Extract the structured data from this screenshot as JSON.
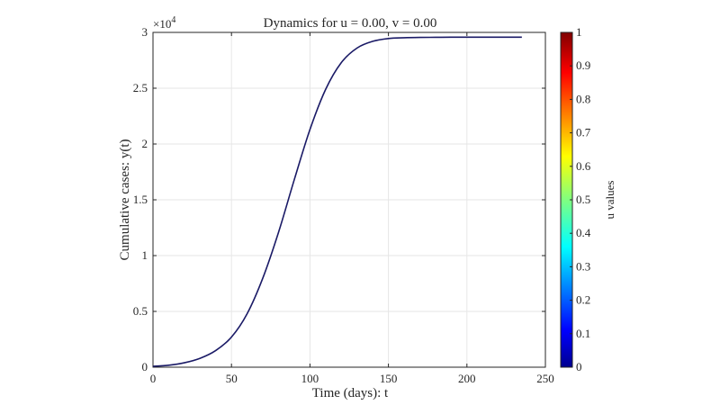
{
  "chart_data": {
    "type": "line",
    "title": "Dynamics for u = 0.00, v = 0.00",
    "xlabel": "Time (days): t",
    "ylabel": "Cumulative cases: y(t)",
    "xlim": [
      0,
      250
    ],
    "ylim": [
      0,
      30000
    ],
    "y_multiplier_label": "×10",
    "y_multiplier_exponent": "4",
    "x_ticks": [
      0,
      50,
      100,
      150,
      200,
      250
    ],
    "y_ticks": [
      0,
      0.5,
      1,
      1.5,
      2,
      2.5,
      3
    ],
    "y_tick_labels": [
      "0",
      "0.5",
      "1",
      "1.5",
      "2",
      "2.5",
      "3"
    ],
    "grid": true,
    "series": [
      {
        "color": "#1a1a66",
        "x": [
          0,
          10,
          20,
          30,
          40,
          50,
          60,
          70,
          80,
          90,
          100,
          110,
          120,
          130,
          140,
          150,
          160,
          170,
          180,
          190,
          200,
          210,
          220,
          235
        ],
        "y": [
          80,
          180,
          400,
          800,
          1500,
          2700,
          4800,
          8000,
          12100,
          16800,
          21300,
          24900,
          27300,
          28600,
          29200,
          29450,
          29520,
          29550,
          29560,
          29570,
          29570,
          29570,
          29570,
          29570
        ]
      }
    ],
    "colorbar": {
      "label": "u values",
      "range": [
        0,
        1
      ],
      "ticks": [
        0,
        0.1,
        0.2,
        0.3,
        0.4,
        0.5,
        0.6,
        0.7,
        0.8,
        0.9,
        1
      ],
      "tick_labels": [
        "0",
        "0.1",
        "0.2",
        "0.3",
        "0.4",
        "0.5",
        "0.6",
        "0.7",
        "0.8",
        "0.9",
        "1"
      ],
      "colormap": "jet"
    }
  }
}
